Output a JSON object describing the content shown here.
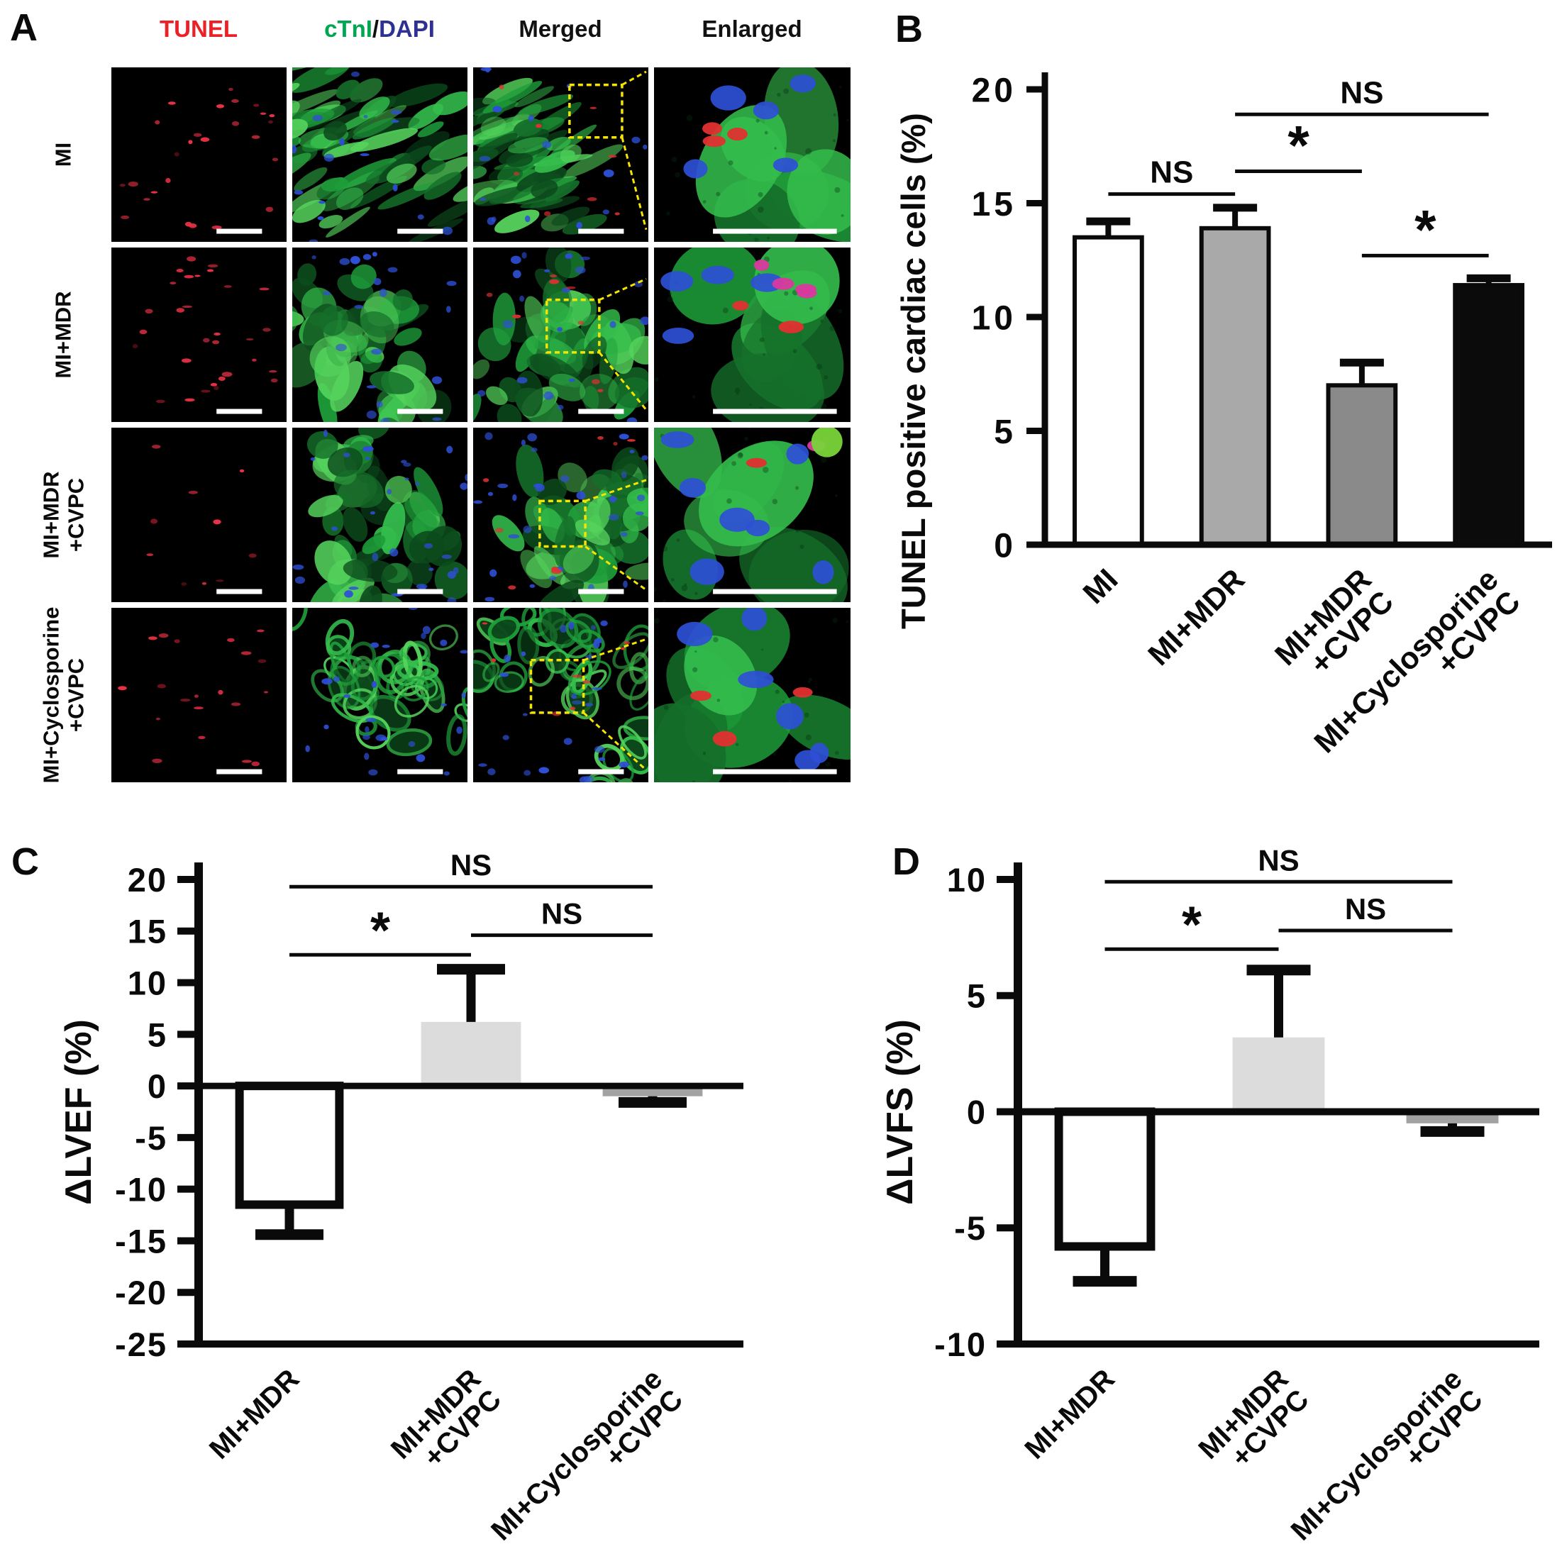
{
  "figure": {
    "background": "#ffffff",
    "ink_color": "#0a0a0a"
  },
  "panel_a": {
    "label": "A",
    "headers": {
      "tunel": {
        "text": "TUNEL",
        "color": "#ec2027"
      },
      "ctni": {
        "text": "cTnI",
        "color": "#00a651"
      },
      "slash": {
        "text": "/",
        "color": "#111111"
      },
      "dapi": {
        "text": "DAPI",
        "color": "#2e3192"
      },
      "merged": {
        "text": "Merged",
        "color": "#111111"
      },
      "enlarged": {
        "text": "Enlarged",
        "color": "#111111"
      }
    },
    "rows": [
      {
        "label_lines": [
          "MI"
        ],
        "tunel_spots": 22,
        "tissue_style": "fibers",
        "enlarged": {
          "red": 3,
          "magenta": 0,
          "blue": 5,
          "bright_blob": false
        }
      },
      {
        "label_lines": [
          "MI+MDR"
        ],
        "tunel_spots": 26,
        "tissue_style": "clumps",
        "enlarged": {
          "red": 2,
          "magenta": 4,
          "blue": 4,
          "bright_blob": false
        }
      },
      {
        "label_lines": [
          "MI+MDR",
          "+CVPC"
        ],
        "tunel_spots": 6,
        "tissue_style": "clumps-blue",
        "enlarged": {
          "red": 1,
          "magenta": 1,
          "blue": 7,
          "bright_blob": true
        }
      },
      {
        "label_lines": [
          "MI+Cyclosporine",
          "+CVPC"
        ],
        "tunel_spots": 16,
        "tissue_style": "rings",
        "enlarged": {
          "red": 3,
          "magenta": 0,
          "blue": 6,
          "bright_blob": false
        }
      }
    ],
    "palette": {
      "background": "#000000",
      "tunel_red": "#ee3146",
      "green_dark": "#0c4a1c",
      "green": "#1e9e3a",
      "green_bright": "#55d35c",
      "dapi_blue": "#2e4fd6",
      "magenta": "#d9399f",
      "scale_bar": "#ffffff",
      "inset_box": "#f5e400"
    }
  },
  "chart_data": [
    {
      "panel_label": "B",
      "type": "bar",
      "title": "",
      "xlabel": "",
      "ylabel": "TUNEL positive cardiac cells (%)",
      "categories": [
        "MI",
        "MI+MDR",
        "MI+MDR\n+CVPC",
        "MI+Cyclosporine\n+CVPC"
      ],
      "values": [
        13.5,
        13.9,
        7.0,
        11.4
      ],
      "errors": [
        0.7,
        0.9,
        1.0,
        0.3
      ],
      "error_direction": "away-from-zero",
      "bar_colors": [
        "#ffffff",
        "#a9a9a9",
        "#8a8a8a",
        "#0b0b0b"
      ],
      "bar_border_widths": [
        6,
        6,
        6,
        6
      ],
      "ylim": [
        0,
        20
      ],
      "yticks": [
        20,
        15,
        10,
        5,
        0
      ],
      "grid": false,
      "legend": "none",
      "significance": [
        {
          "from": 0,
          "to": 1,
          "label": "NS",
          "y": 15.4
        },
        {
          "from": 1,
          "to": 2,
          "label": "*",
          "y": 16.4
        },
        {
          "from": 1,
          "to": 3,
          "label": "NS",
          "y": 18.9
        },
        {
          "from": 2,
          "to": 3,
          "label": "*",
          "y": 12.7
        }
      ]
    },
    {
      "panel_label": "C",
      "type": "bar",
      "title": "",
      "xlabel": "",
      "ylabel": "ΔLVEF (%)",
      "categories": [
        "MI+MDR",
        "MI+MDR\n+CVPC",
        "MI+Cyclosporine\n+CVPC"
      ],
      "values": [
        -11.5,
        6.2,
        -1.0
      ],
      "errors": [
        2.9,
        5.1,
        0.6
      ],
      "error_direction": "away-from-zero",
      "bar_colors": [
        "#ffffff",
        "#dcdcdc",
        "#a2a2a2"
      ],
      "bar_border_widths": [
        12,
        0,
        0
      ],
      "ylim": [
        -25,
        20
      ],
      "yticks": [
        20,
        15,
        10,
        5,
        0,
        -5,
        -10,
        -15,
        -20,
        -25
      ],
      "grid": false,
      "legend": "none",
      "significance": [
        {
          "from": 0,
          "to": 1,
          "label": "*",
          "y": 12.7
        },
        {
          "from": 1,
          "to": 2,
          "label": "NS",
          "y": 14.6
        },
        {
          "from": 0,
          "to": 2,
          "label": "NS",
          "y": 19.3
        }
      ]
    },
    {
      "panel_label": "D",
      "type": "bar",
      "title": "",
      "xlabel": "",
      "ylabel": "ΔLVFS (%)",
      "categories": [
        "MI+MDR",
        "MI+MDR\n+CVPC",
        "MI+Cyclosporine\n+CVPC"
      ],
      "values": [
        -5.8,
        3.2,
        -0.5
      ],
      "errors": [
        1.5,
        2.9,
        0.35
      ],
      "error_direction": "away-from-zero",
      "bar_colors": [
        "#ffffff",
        "#dcdcdc",
        "#a2a2a2"
      ],
      "bar_border_widths": [
        12,
        0,
        0
      ],
      "ylim": [
        -10,
        10
      ],
      "yticks": [
        10,
        5,
        0,
        -5,
        -10
      ],
      "grid": false,
      "legend": "none",
      "significance": [
        {
          "from": 0,
          "to": 1,
          "label": "*",
          "y": 7.0
        },
        {
          "from": 1,
          "to": 2,
          "label": "NS",
          "y": 7.8
        },
        {
          "from": 0,
          "to": 2,
          "label": "NS",
          "y": 9.9
        }
      ]
    }
  ]
}
